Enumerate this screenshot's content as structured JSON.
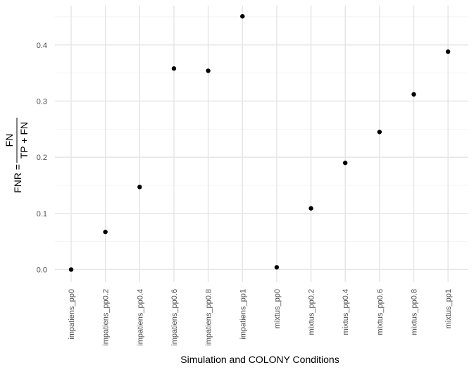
{
  "chart_data": {
    "type": "scatter",
    "title": "",
    "xlabel": "Simulation and COLONY Conditions",
    "ylabel": {
      "lhs": "FNR =",
      "numerator": "FN",
      "denominator": "TP + FN"
    },
    "categories": [
      "impatiens_pp0",
      "impatiens_pp0.2",
      "impatiens_pp0.4",
      "impatiens_pp0.6",
      "impatiens_pp0.8",
      "impatiens_pp1",
      "mixtus_pp0",
      "mixtus_pp0.2",
      "mixtus_pp0.4",
      "mixtus_pp0.6",
      "mixtus_pp0.8",
      "mixtus_pp1"
    ],
    "values": [
      0.0,
      0.067,
      0.147,
      0.358,
      0.354,
      0.451,
      0.004,
      0.109,
      0.19,
      0.245,
      0.312,
      0.388
    ],
    "ylim": [
      -0.022,
      0.47
    ],
    "yticks": [
      0.0,
      0.1,
      0.2,
      0.3,
      0.4
    ],
    "ytick_labels": [
      "0.0",
      "0.1",
      "0.2",
      "0.3",
      "0.4"
    ],
    "grid": true,
    "point_color": "#000000",
    "grid_major_color": "#e5e5e5",
    "grid_minor_color": "#f2f2f2",
    "background": "#ffffff"
  }
}
